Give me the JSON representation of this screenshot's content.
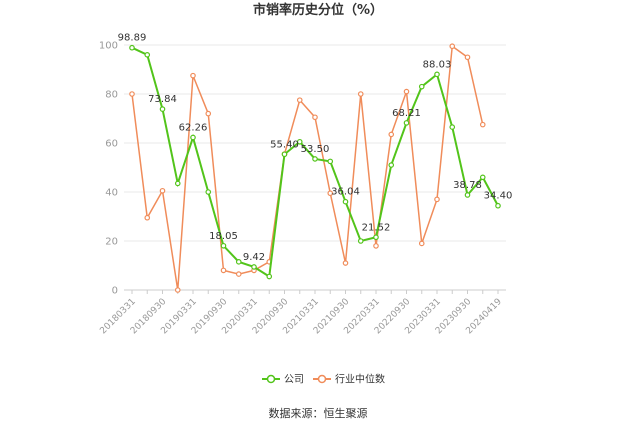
{
  "chart_data": {
    "type": "line",
    "title": "市销率历史分位（%）",
    "ylim": [
      0,
      100
    ],
    "yticks": [
      0,
      20,
      40,
      60,
      80,
      100
    ],
    "x_tick_labels": [
      "20180331",
      "20180930",
      "20190331",
      "20190930",
      "20200331",
      "20200930",
      "20210331",
      "20210930",
      "20220331",
      "20220930",
      "20230331",
      "20230930",
      "20240419"
    ],
    "x": [
      "20180331",
      "20180630",
      "20180930",
      "20181231",
      "20190331",
      "20190630",
      "20190930",
      "20191231",
      "20200331",
      "20200630",
      "20200930",
      "20201231",
      "20210331",
      "20210630",
      "20210930",
      "20211231",
      "20220331",
      "20220630",
      "20220930",
      "20221231",
      "20230331",
      "20230630",
      "20230930",
      "20231231",
      "20240419"
    ],
    "grid": "horizontal",
    "legend_position": "bottom",
    "series": [
      {
        "name": "公司",
        "color": "#52c41a",
        "values": [
          98.89,
          96.0,
          73.84,
          43.5,
          62.26,
          40.0,
          18.05,
          11.5,
          9.42,
          5.5,
          55.4,
          60.5,
          53.5,
          52.5,
          36.04,
          20.0,
          21.52,
          51.0,
          68.21,
          83.0,
          88.03,
          66.5,
          38.78,
          46.0,
          34.4
        ],
        "data_labels": {
          "0": "98.89",
          "2": "73.84",
          "4": "62.26",
          "6": "18.05",
          "8": "9.42",
          "10": "55.40",
          "12": "53.50",
          "14": "36.04",
          "16": "21.52",
          "18": "68.21",
          "20": "88.03",
          "22": "38.78",
          "24": "34.40"
        }
      },
      {
        "name": "行业中位数",
        "color": "#f08c5a",
        "values": [
          80.0,
          29.5,
          40.5,
          0.0,
          87.5,
          72.0,
          8.0,
          6.5,
          8.0,
          11.5,
          55.5,
          77.5,
          70.5,
          39.5,
          11.0,
          80.0,
          18.0,
          63.5,
          81.0,
          19.0,
          37.0,
          99.5,
          95.0,
          67.5,
          null
        ]
      }
    ]
  },
  "source_text": "数据来源：恒生聚源"
}
